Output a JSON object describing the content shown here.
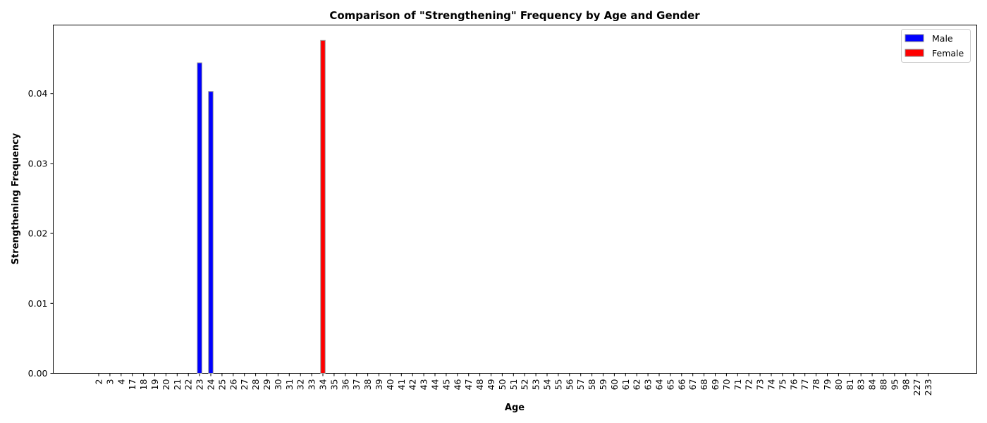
{
  "chart_data": {
    "type": "bar",
    "title": "Comparison of \"Strengthening\" Frequency by Age and Gender",
    "xlabel": "Age",
    "ylabel": "Strengthening Frequency",
    "ylim": [
      0,
      0.0498
    ],
    "yticks": [
      "0.00",
      "0.01",
      "0.02",
      "0.03",
      "0.04"
    ],
    "yticks_values": [
      0,
      0.01,
      0.02,
      0.03,
      0.04
    ],
    "grid": false,
    "legend_position": "top-right",
    "categories": [
      "2",
      "3",
      "4",
      "17",
      "18",
      "19",
      "20",
      "21",
      "22",
      "23",
      "24",
      "25",
      "26",
      "27",
      "28",
      "29",
      "30",
      "31",
      "32",
      "33",
      "34",
      "35",
      "36",
      "37",
      "38",
      "39",
      "40",
      "41",
      "42",
      "43",
      "44",
      "45",
      "46",
      "47",
      "48",
      "49",
      "50",
      "51",
      "52",
      "53",
      "54",
      "55",
      "56",
      "57",
      "58",
      "59",
      "60",
      "61",
      "62",
      "63",
      "64",
      "65",
      "66",
      "67",
      "68",
      "69",
      "70",
      "71",
      "72",
      "73",
      "74",
      "75",
      "76",
      "77",
      "78",
      "79",
      "80",
      "81",
      "83",
      "84",
      "88",
      "95",
      "98",
      "227",
      "233"
    ],
    "series": [
      {
        "name": "Male",
        "color": "#0000ff",
        "points": [
          {
            "category": "23",
            "value": 0.0444
          },
          {
            "category": "24",
            "value": 0.0403
          }
        ]
      },
      {
        "name": "Female",
        "color": "#ff0000",
        "points": [
          {
            "category": "34",
            "value": 0.0476
          }
        ]
      }
    ]
  }
}
